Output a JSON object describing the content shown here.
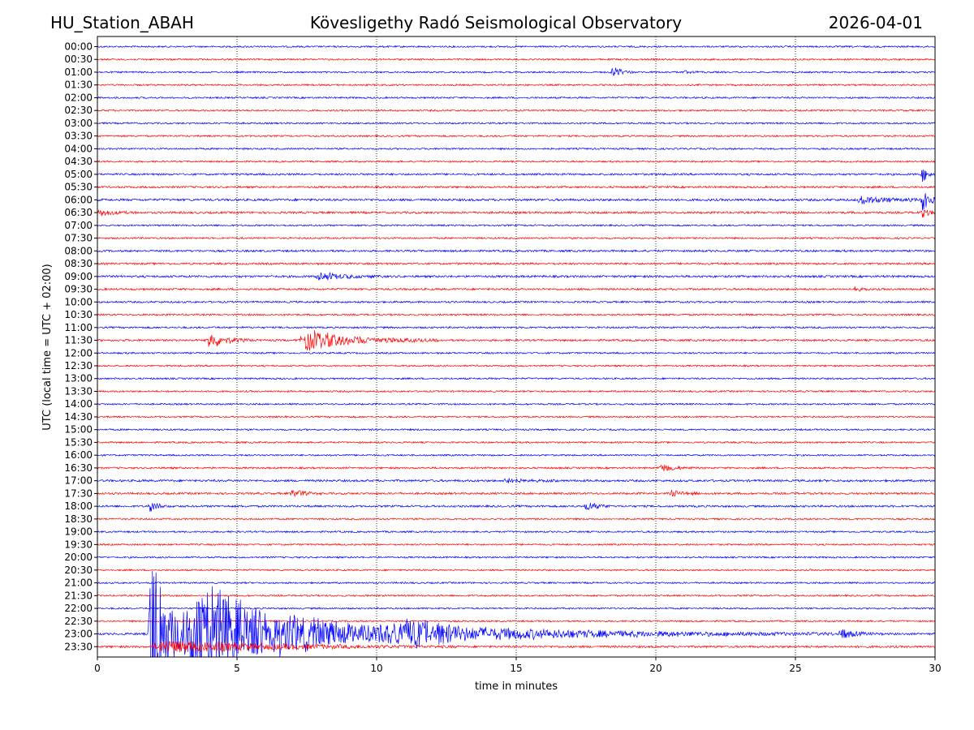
{
  "header": {
    "station": "HU_Station_ABAH",
    "observatory": "Kövesligethy Radó Seismological Observatory",
    "date": "2026-04-01"
  },
  "chart_data": {
    "type": "line",
    "title": "Kövesligethy Radó Seismological Observatory",
    "xlabel": "time in minutes",
    "ylabel": "UTC (local time = UTC + 02:00)",
    "xlim": [
      0,
      30
    ],
    "xticks": [
      "0",
      "5",
      "10",
      "15",
      "20",
      "25",
      "30"
    ],
    "grid": "vertical dotted at 5-minute ticks",
    "row_colors": [
      "#0000ff",
      "#ff0000"
    ],
    "rows": [
      {
        "label": "00:00",
        "noise": 1.0,
        "events": []
      },
      {
        "label": "00:30",
        "noise": 1.0,
        "events": []
      },
      {
        "label": "01:00",
        "noise": 1.0,
        "events": [
          {
            "start": 18.4,
            "dur": 0.6,
            "amp": 8
          },
          {
            "start": 21.0,
            "dur": 0.6,
            "amp": 2
          }
        ]
      },
      {
        "label": "01:30",
        "noise": 1.0,
        "events": []
      },
      {
        "label": "02:00",
        "noise": 1.0,
        "events": []
      },
      {
        "label": "02:30",
        "noise": 1.0,
        "events": []
      },
      {
        "label": "03:00",
        "noise": 1.0,
        "events": []
      },
      {
        "label": "03:30",
        "noise": 1.0,
        "events": []
      },
      {
        "label": "04:00",
        "noise": 1.0,
        "events": []
      },
      {
        "label": "04:30",
        "noise": 1.0,
        "events": []
      },
      {
        "label": "05:00",
        "noise": 1.2,
        "events": [
          {
            "start": 29.5,
            "dur": 0.5,
            "amp": 10
          }
        ]
      },
      {
        "label": "05:30",
        "noise": 1.2,
        "events": []
      },
      {
        "label": "06:00",
        "noise": 1.4,
        "events": [
          {
            "start": 27.2,
            "dur": 2.0,
            "amp": 5
          },
          {
            "start": 29.5,
            "dur": 0.5,
            "amp": 20
          }
        ]
      },
      {
        "label": "06:30",
        "noise": 1.3,
        "events": [
          {
            "start": 0.0,
            "dur": 1.0,
            "amp": 5
          },
          {
            "start": 29.5,
            "dur": 0.5,
            "amp": 8
          }
        ]
      },
      {
        "label": "07:00",
        "noise": 1.0,
        "events": []
      },
      {
        "label": "07:30",
        "noise": 1.0,
        "events": []
      },
      {
        "label": "08:00",
        "noise": 1.2,
        "events": []
      },
      {
        "label": "08:30",
        "noise": 1.2,
        "events": []
      },
      {
        "label": "09:00",
        "noise": 1.3,
        "events": [
          {
            "start": 7.8,
            "dur": 1.8,
            "amp": 6
          }
        ]
      },
      {
        "label": "09:30",
        "noise": 1.2,
        "events": [
          {
            "start": 27.1,
            "dur": 0.4,
            "amp": 4
          }
        ]
      },
      {
        "label": "10:00",
        "noise": 1.1,
        "events": []
      },
      {
        "label": "10:30",
        "noise": 1.1,
        "events": []
      },
      {
        "label": "11:00",
        "noise": 1.1,
        "events": []
      },
      {
        "label": "11:30",
        "noise": 1.2,
        "events": [
          {
            "start": 3.9,
            "dur": 1.2,
            "amp": 12
          },
          {
            "start": 7.2,
            "dur": 3.6,
            "amp": 14
          }
        ]
      },
      {
        "label": "12:00",
        "noise": 1.0,
        "events": []
      },
      {
        "label": "12:30",
        "noise": 1.0,
        "events": []
      },
      {
        "label": "13:00",
        "noise": 1.0,
        "events": []
      },
      {
        "label": "13:30",
        "noise": 1.0,
        "events": []
      },
      {
        "label": "14:00",
        "noise": 1.0,
        "events": []
      },
      {
        "label": "14:30",
        "noise": 1.0,
        "events": []
      },
      {
        "label": "15:00",
        "noise": 1.0,
        "events": []
      },
      {
        "label": "15:30",
        "noise": 1.0,
        "events": []
      },
      {
        "label": "16:00",
        "noise": 1.0,
        "events": []
      },
      {
        "label": "16:30",
        "noise": 1.1,
        "events": [
          {
            "start": 20.1,
            "dur": 1.0,
            "amp": 6
          }
        ]
      },
      {
        "label": "17:00",
        "noise": 1.3,
        "events": [
          {
            "start": 14.5,
            "dur": 1.5,
            "amp": 3
          }
        ]
      },
      {
        "label": "17:30",
        "noise": 1.2,
        "events": [
          {
            "start": 6.9,
            "dur": 0.8,
            "amp": 6
          },
          {
            "start": 20.5,
            "dur": 1.0,
            "amp": 4
          }
        ]
      },
      {
        "label": "18:00",
        "noise": 1.2,
        "events": [
          {
            "start": 1.8,
            "dur": 0.6,
            "amp": 8
          },
          {
            "start": 17.4,
            "dur": 0.9,
            "amp": 6
          }
        ]
      },
      {
        "label": "18:30",
        "noise": 1.0,
        "events": []
      },
      {
        "label": "19:00",
        "noise": 1.0,
        "events": []
      },
      {
        "label": "19:30",
        "noise": 1.0,
        "events": []
      },
      {
        "label": "20:00",
        "noise": 1.0,
        "events": []
      },
      {
        "label": "20:30",
        "noise": 1.0,
        "events": []
      },
      {
        "label": "21:00",
        "noise": 1.0,
        "events": []
      },
      {
        "label": "21:30",
        "noise": 1.0,
        "events": []
      },
      {
        "label": "22:00",
        "noise": 1.0,
        "events": []
      },
      {
        "label": "22:30",
        "noise": 1.0,
        "events": []
      },
      {
        "label": "23:00",
        "noise": 1.3,
        "events": [
          {
            "start": 1.8,
            "dur": 1.2,
            "amp": 160
          },
          {
            "start": 3.0,
            "dur": 7.0,
            "amp": 75
          },
          {
            "start": 10.0,
            "dur": 12.0,
            "amp": 14
          },
          {
            "start": 26.5,
            "dur": 1.0,
            "amp": 8
          }
        ]
      },
      {
        "label": "23:30",
        "noise": 1.3,
        "events": [
          {
            "start": 1.8,
            "dur": 8.0,
            "amp": 9
          }
        ]
      }
    ]
  }
}
